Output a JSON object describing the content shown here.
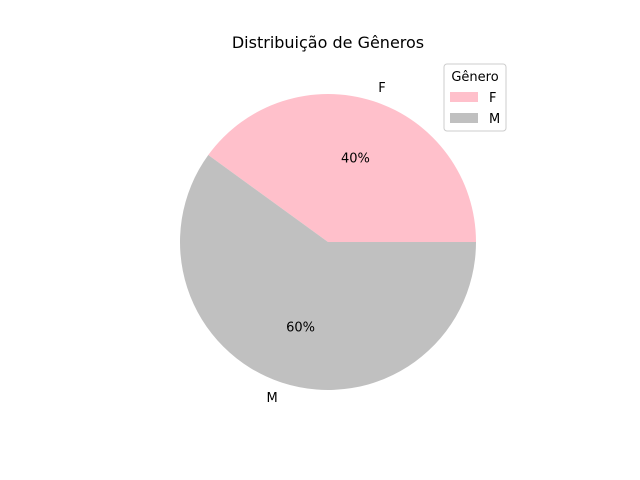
{
  "chart_data": {
    "type": "pie",
    "title": "Distribuição de Gêneros",
    "categories": [
      "F",
      "M"
    ],
    "values": [
      40,
      60
    ],
    "percent_labels": [
      "40%",
      "60%"
    ],
    "colors": [
      "#ffc0cb",
      "#c0c0c0"
    ],
    "start_angle_deg": 0,
    "direction": "counterclockwise",
    "legend": {
      "title": "Gênero",
      "entries": [
        "F",
        "M"
      ],
      "placement": "top-right"
    }
  }
}
